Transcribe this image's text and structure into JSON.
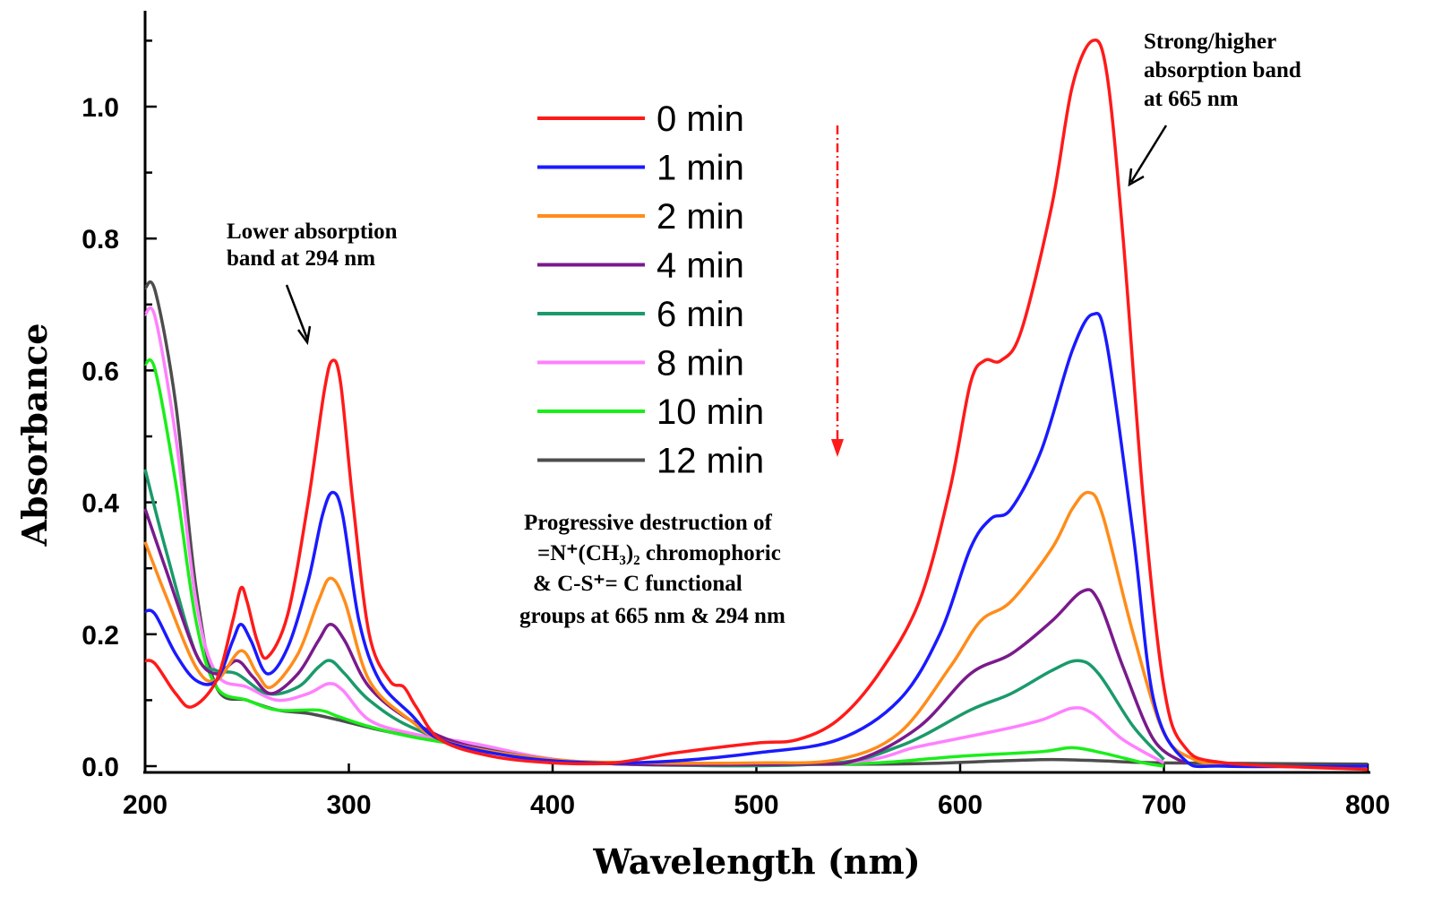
{
  "chart_data": {
    "type": "line",
    "xlabel": "Wavelength (nm)",
    "ylabel": "Absorbance",
    "xlim": [
      200,
      800
    ],
    "ylim": [
      0,
      1.1
    ],
    "xticks": [
      "200",
      "300",
      "400",
      "500",
      "600",
      "700",
      "800"
    ],
    "yticks": [
      "0.0",
      "0.2",
      "0.4",
      "0.6",
      "0.8",
      "1.0"
    ],
    "grid": false,
    "legend_position": "top-center",
    "series": [
      {
        "name": "0 min",
        "color": "#ff1a1a",
        "points": [
          [
            200,
            0.16
          ],
          [
            205,
            0.155
          ],
          [
            215,
            0.11
          ],
          [
            223,
            0.09
          ],
          [
            235,
            0.13
          ],
          [
            243,
            0.22
          ],
          [
            247,
            0.27
          ],
          [
            250,
            0.25
          ],
          [
            255,
            0.19
          ],
          [
            260,
            0.165
          ],
          [
            270,
            0.23
          ],
          [
            280,
            0.4
          ],
          [
            288,
            0.57
          ],
          [
            292,
            0.615
          ],
          [
            296,
            0.58
          ],
          [
            302,
            0.4
          ],
          [
            310,
            0.2
          ],
          [
            320,
            0.13
          ],
          [
            327,
            0.12
          ],
          [
            333,
            0.09
          ],
          [
            345,
            0.04
          ],
          [
            370,
            0.015
          ],
          [
            400,
            0.005
          ],
          [
            430,
            0.005
          ],
          [
            460,
            0.02
          ],
          [
            500,
            0.035
          ],
          [
            520,
            0.04
          ],
          [
            540,
            0.07
          ],
          [
            560,
            0.14
          ],
          [
            580,
            0.25
          ],
          [
            595,
            0.42
          ],
          [
            605,
            0.58
          ],
          [
            612,
            0.615
          ],
          [
            620,
            0.615
          ],
          [
            630,
            0.66
          ],
          [
            645,
            0.85
          ],
          [
            655,
            1.03
          ],
          [
            665,
            1.1
          ],
          [
            672,
            1.05
          ],
          [
            680,
            0.8
          ],
          [
            690,
            0.4
          ],
          [
            700,
            0.12
          ],
          [
            710,
            0.03
          ],
          [
            730,
            0.005
          ],
          [
            800,
            -0.005
          ]
        ]
      },
      {
        "name": "1 min",
        "color": "#1a1aff",
        "points": [
          [
            200,
            0.235
          ],
          [
            205,
            0.23
          ],
          [
            215,
            0.17
          ],
          [
            225,
            0.13
          ],
          [
            235,
            0.13
          ],
          [
            243,
            0.19
          ],
          [
            247,
            0.215
          ],
          [
            252,
            0.19
          ],
          [
            260,
            0.14
          ],
          [
            270,
            0.18
          ],
          [
            280,
            0.28
          ],
          [
            287,
            0.38
          ],
          [
            292,
            0.415
          ],
          [
            297,
            0.38
          ],
          [
            305,
            0.22
          ],
          [
            315,
            0.13
          ],
          [
            330,
            0.08
          ],
          [
            345,
            0.04
          ],
          [
            380,
            0.015
          ],
          [
            420,
            0.005
          ],
          [
            460,
            0.008
          ],
          [
            500,
            0.02
          ],
          [
            540,
            0.04
          ],
          [
            570,
            0.1
          ],
          [
            590,
            0.2
          ],
          [
            605,
            0.33
          ],
          [
            615,
            0.375
          ],
          [
            625,
            0.39
          ],
          [
            640,
            0.48
          ],
          [
            655,
            0.63
          ],
          [
            665,
            0.685
          ],
          [
            672,
            0.64
          ],
          [
            685,
            0.35
          ],
          [
            695,
            0.1
          ],
          [
            710,
            0.01
          ],
          [
            730,
            0
          ],
          [
            800,
            0
          ]
        ]
      },
      {
        "name": "2 min",
        "color": "#ff8c1a",
        "points": [
          [
            200,
            0.34
          ],
          [
            210,
            0.26
          ],
          [
            225,
            0.15
          ],
          [
            235,
            0.13
          ],
          [
            247,
            0.175
          ],
          [
            255,
            0.14
          ],
          [
            262,
            0.12
          ],
          [
            275,
            0.17
          ],
          [
            285,
            0.25
          ],
          [
            291,
            0.285
          ],
          [
            298,
            0.25
          ],
          [
            310,
            0.13
          ],
          [
            330,
            0.07
          ],
          [
            350,
            0.035
          ],
          [
            400,
            0.01
          ],
          [
            450,
            0.005
          ],
          [
            500,
            0.005
          ],
          [
            540,
            0.01
          ],
          [
            570,
            0.05
          ],
          [
            595,
            0.15
          ],
          [
            610,
            0.22
          ],
          [
            625,
            0.25
          ],
          [
            645,
            0.33
          ],
          [
            655,
            0.39
          ],
          [
            663,
            0.415
          ],
          [
            670,
            0.38
          ],
          [
            685,
            0.2
          ],
          [
            700,
            0.05
          ],
          [
            715,
            0.01
          ],
          [
            730,
            0
          ]
        ]
      },
      {
        "name": "4 min",
        "color": "#7a1a8c",
        "points": [
          [
            200,
            0.39
          ],
          [
            210,
            0.3
          ],
          [
            225,
            0.17
          ],
          [
            235,
            0.14
          ],
          [
            245,
            0.16
          ],
          [
            253,
            0.135
          ],
          [
            262,
            0.11
          ],
          [
            275,
            0.14
          ],
          [
            285,
            0.19
          ],
          [
            291,
            0.215
          ],
          [
            298,
            0.19
          ],
          [
            310,
            0.12
          ],
          [
            330,
            0.07
          ],
          [
            360,
            0.03
          ],
          [
            420,
            0.005
          ],
          [
            520,
            0.003
          ],
          [
            550,
            0.01
          ],
          [
            580,
            0.06
          ],
          [
            605,
            0.14
          ],
          [
            625,
            0.17
          ],
          [
            645,
            0.22
          ],
          [
            660,
            0.265
          ],
          [
            668,
            0.25
          ],
          [
            680,
            0.15
          ],
          [
            695,
            0.04
          ],
          [
            710,
            0.005
          ]
        ]
      },
      {
        "name": "6 min",
        "color": "#1a9a6a",
        "points": [
          [
            200,
            0.45
          ],
          [
            210,
            0.33
          ],
          [
            225,
            0.17
          ],
          [
            235,
            0.145
          ],
          [
            245,
            0.14
          ],
          [
            260,
            0.11
          ],
          [
            275,
            0.12
          ],
          [
            285,
            0.15
          ],
          [
            291,
            0.16
          ],
          [
            298,
            0.14
          ],
          [
            310,
            0.1
          ],
          [
            330,
            0.06
          ],
          [
            360,
            0.03
          ],
          [
            420,
            0.005
          ],
          [
            530,
            0.003
          ],
          [
            570,
            0.03
          ],
          [
            605,
            0.085
          ],
          [
            625,
            0.11
          ],
          [
            645,
            0.145
          ],
          [
            658,
            0.16
          ],
          [
            668,
            0.14
          ],
          [
            685,
            0.06
          ],
          [
            700,
            0.01
          ]
        ]
      },
      {
        "name": "8 min",
        "color": "#ff80ff",
        "points": [
          [
            200,
            0.685
          ],
          [
            205,
            0.68
          ],
          [
            215,
            0.5
          ],
          [
            225,
            0.25
          ],
          [
            235,
            0.14
          ],
          [
            250,
            0.12
          ],
          [
            265,
            0.1
          ],
          [
            280,
            0.11
          ],
          [
            290,
            0.125
          ],
          [
            297,
            0.115
          ],
          [
            310,
            0.07
          ],
          [
            330,
            0.05
          ],
          [
            360,
            0.035
          ],
          [
            420,
            0.005
          ],
          [
            540,
            0.005
          ],
          [
            580,
            0.03
          ],
          [
            620,
            0.055
          ],
          [
            640,
            0.07
          ],
          [
            655,
            0.088
          ],
          [
            665,
            0.08
          ],
          [
            680,
            0.04
          ],
          [
            700,
            0.005
          ]
        ]
      },
      {
        "name": "10 min",
        "color": "#1aee1a",
        "points": [
          [
            200,
            0.61
          ],
          [
            205,
            0.6
          ],
          [
            215,
            0.43
          ],
          [
            225,
            0.22
          ],
          [
            235,
            0.12
          ],
          [
            250,
            0.1
          ],
          [
            265,
            0.085
          ],
          [
            285,
            0.085
          ],
          [
            295,
            0.075
          ],
          [
            310,
            0.06
          ],
          [
            330,
            0.045
          ],
          [
            360,
            0.03
          ],
          [
            420,
            0.005
          ],
          [
            540,
            0.003
          ],
          [
            600,
            0.015
          ],
          [
            640,
            0.022
          ],
          [
            655,
            0.028
          ],
          [
            670,
            0.02
          ],
          [
            690,
            0.005
          ],
          [
            700,
            0
          ]
        ]
      },
      {
        "name": "12 min",
        "color": "#4d4d4d",
        "points": [
          [
            200,
            0.725
          ],
          [
            205,
            0.72
          ],
          [
            215,
            0.55
          ],
          [
            225,
            0.27
          ],
          [
            235,
            0.12
          ],
          [
            250,
            0.1
          ],
          [
            265,
            0.085
          ],
          [
            280,
            0.08
          ],
          [
            295,
            0.07
          ],
          [
            315,
            0.055
          ],
          [
            340,
            0.04
          ],
          [
            380,
            0.02
          ],
          [
            420,
            0.005
          ],
          [
            560,
            0.003
          ],
          [
            620,
            0.008
          ],
          [
            645,
            0.01
          ],
          [
            670,
            0.008
          ],
          [
            700,
            0.005
          ],
          [
            800,
            0.003
          ]
        ]
      }
    ],
    "annotations": {
      "lower_band": [
        "Lower absorption",
        "band at 294 nm"
      ],
      "higher_band": [
        "Strong/higher",
        "absorption band",
        "at 665 nm"
      ],
      "destruction": [
        "Progressive destruction of",
        "=N⁺(CH₃)₂ chromophoric",
        "& C-S⁺= C functional",
        "groups at 665 nm & 294 nm"
      ]
    },
    "trend_arrow_color": "#ff1a1a"
  }
}
